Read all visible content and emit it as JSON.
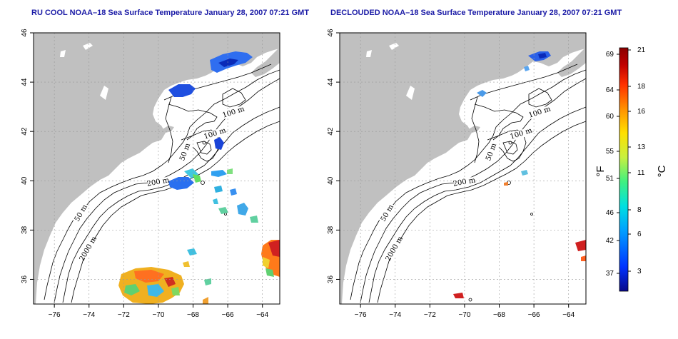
{
  "panels": [
    {
      "title": "RU COOL NOAA–18 Sea Surface Temperature January 28, 2007 07:21 GMT",
      "contour_labels": [
        "100 m",
        "100 m",
        "50 m",
        "200 m",
        "50 m",
        "2000 m"
      ]
    },
    {
      "title": "DECLOUDED NOAA–18 Sea Surface Temperature January 28, 2007 07:21 GMT",
      "contour_labels": [
        "100 m",
        "100 m",
        "50 m",
        "200 m",
        "50 m",
        "2000 m"
      ]
    }
  ],
  "axes": {
    "x_ticks": [
      "−76",
      "−74",
      "−72",
      "−70",
      "−68",
      "−66",
      "−64"
    ],
    "y_ticks": [
      "36",
      "38",
      "40",
      "42",
      "44",
      "46"
    ],
    "x_range": [
      -77.2,
      -63.0
    ],
    "y_range": [
      35.0,
      46.0
    ]
  },
  "colorbar": {
    "fahrenheit_ticks": [
      "69",
      "64",
      "60",
      "55",
      "51",
      "46",
      "42",
      "37"
    ],
    "celsius_ticks": [
      "21",
      "18",
      "16",
      "13",
      "11",
      "8",
      "6",
      "3"
    ],
    "f_unit": "°F",
    "c_unit": "°C",
    "colors": [
      "#08088a",
      "#0033ff",
      "#00a0ff",
      "#00e0e0",
      "#40f080",
      "#c8f040",
      "#ffe000",
      "#ff9000",
      "#ff3000",
      "#c00000",
      "#8a0000"
    ]
  },
  "colors": {
    "land": "#c0c0c0",
    "title": "#1a1aa6",
    "grid": "#999999"
  }
}
